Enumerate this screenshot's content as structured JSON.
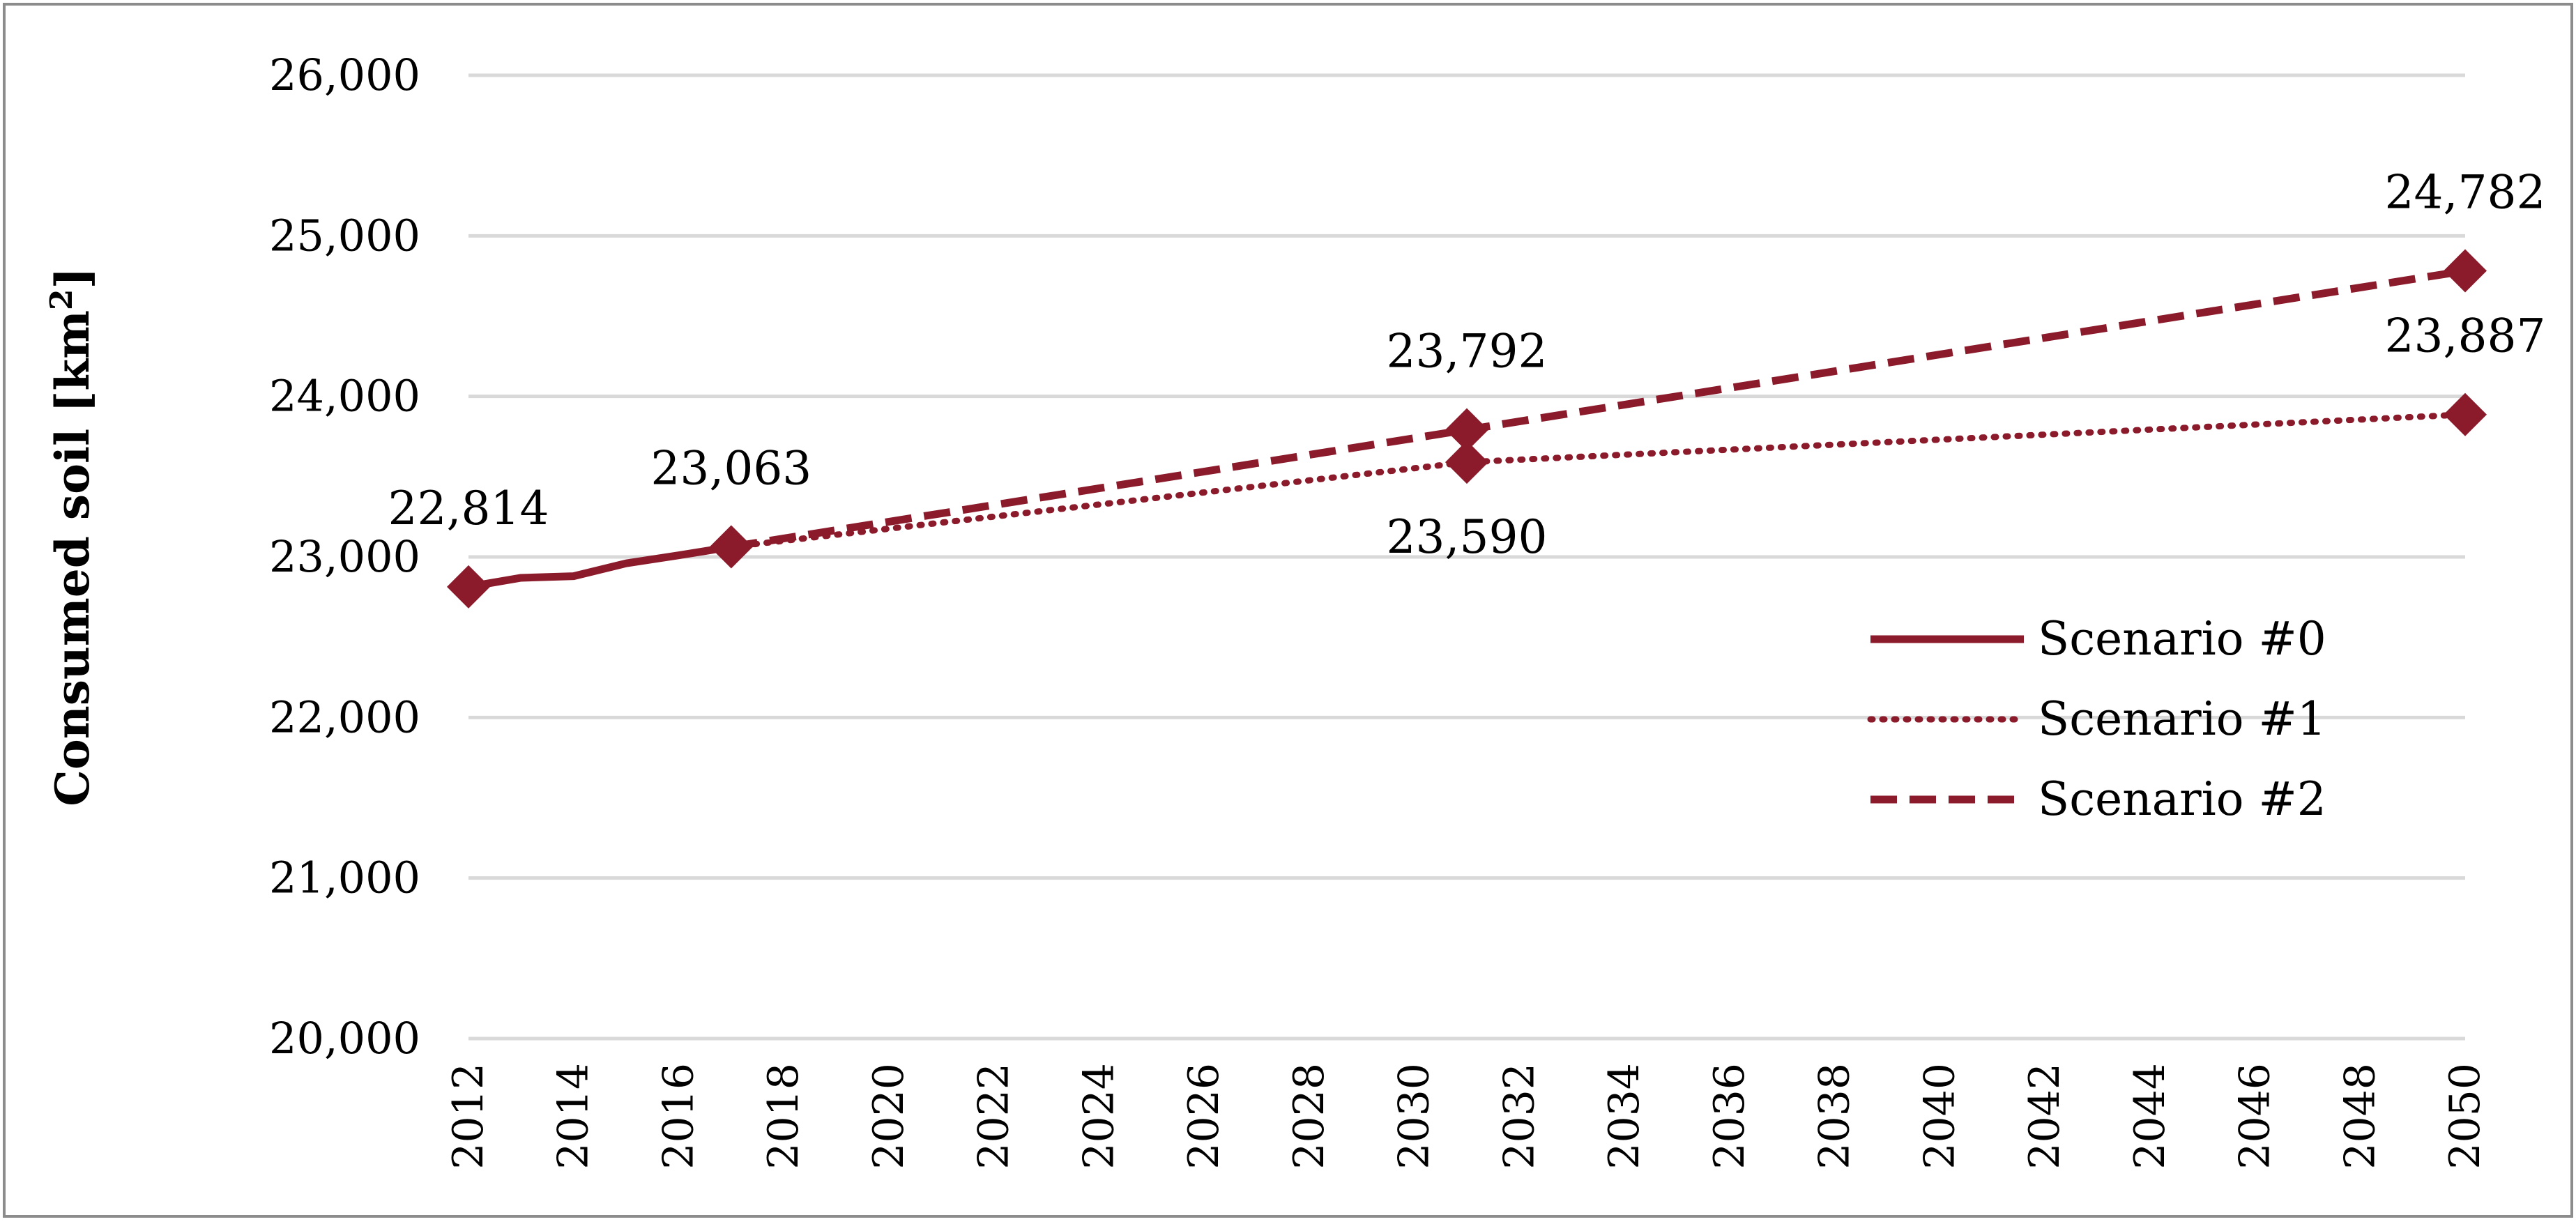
{
  "chart_data": {
    "type": "line",
    "title": "",
    "xlabel": "",
    "ylabel": "Consumed soil [km",
    "ylabel_superscript": "2",
    "ylabel_suffix": "]",
    "ylim": [
      20000,
      26000
    ],
    "xlim": [
      2012,
      2050
    ],
    "y_ticks": [
      20000,
      21000,
      22000,
      23000,
      24000,
      25000,
      26000
    ],
    "y_tick_labels": [
      "20,000",
      "21,000",
      "22,000",
      "23,000",
      "24,000",
      "25,000",
      "26,000"
    ],
    "x_ticks": [
      2012,
      2014,
      2016,
      2018,
      2020,
      2022,
      2024,
      2026,
      2028,
      2030,
      2032,
      2034,
      2036,
      2038,
      2040,
      2042,
      2044,
      2046,
      2048,
      2050
    ],
    "x_tick_labels": [
      "2012",
      "2014",
      "2016",
      "2018",
      "2020",
      "2022",
      "2024",
      "2026",
      "2028",
      "2030",
      "2032",
      "2034",
      "2036",
      "2038",
      "2040",
      "2042",
      "2044",
      "2046",
      "2048",
      "2050"
    ],
    "grid": "horizontal",
    "legend_position": "right",
    "color": "#8b1a2b",
    "series": [
      {
        "name": "Scenario #0",
        "style": "solid",
        "points": [
          [
            2012,
            22814
          ],
          [
            2013,
            22870
          ],
          [
            2014,
            22880
          ],
          [
            2015,
            22960
          ],
          [
            2016,
            23010
          ],
          [
            2017,
            23063
          ]
        ],
        "markers": [
          [
            2012,
            22814
          ],
          [
            2017,
            23063
          ]
        ]
      },
      {
        "name": "Scenario #1",
        "style": "dotted",
        "points": [
          [
            2017,
            23063
          ],
          [
            2031,
            23590
          ],
          [
            2050,
            23887
          ]
        ],
        "markers": [
          [
            2031,
            23590
          ],
          [
            2050,
            23887
          ]
        ]
      },
      {
        "name": "Scenario #2",
        "style": "dashed",
        "points": [
          [
            2017,
            23063
          ],
          [
            2031,
            23792
          ],
          [
            2050,
            24782
          ]
        ],
        "markers": [
          [
            2031,
            23792
          ],
          [
            2050,
            24782
          ]
        ]
      }
    ],
    "annotations": [
      {
        "text": "22,814",
        "x": 2012,
        "y": 22814,
        "placement": "above"
      },
      {
        "text": "23,063",
        "x": 2017,
        "y": 23063,
        "placement": "above"
      },
      {
        "text": "23,792",
        "x": 2031,
        "y": 23792,
        "placement": "above"
      },
      {
        "text": "23,590",
        "x": 2031,
        "y": 23590,
        "placement": "below"
      },
      {
        "text": "24,782",
        "x": 2050,
        "y": 24782,
        "placement": "above"
      },
      {
        "text": "23,887",
        "x": 2050,
        "y": 23887,
        "placement": "above"
      }
    ]
  }
}
